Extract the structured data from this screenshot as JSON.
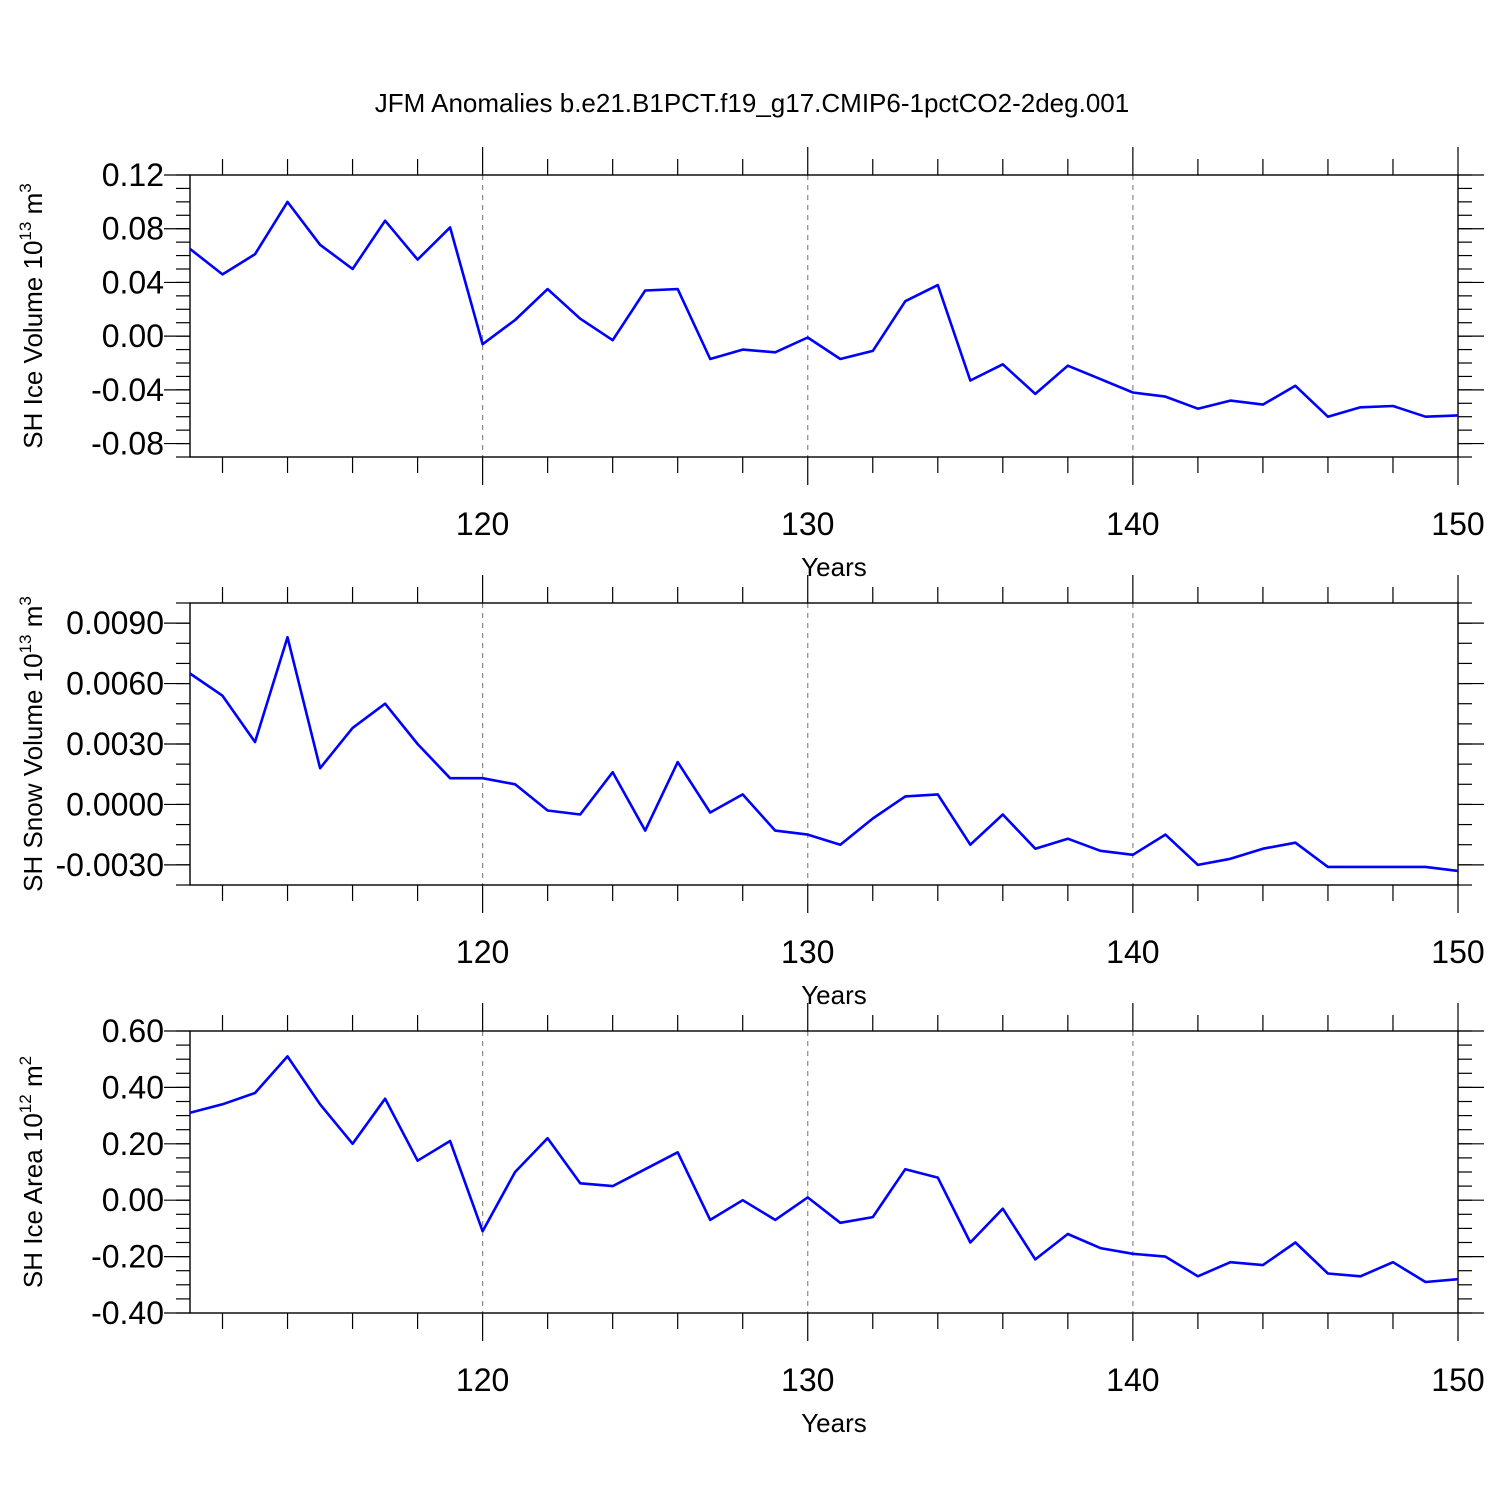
{
  "figure": {
    "title": "JFM Anomalies b.e21.B1PCT.f19_g17.CMIP6-1pctCO2-2deg.001"
  },
  "colors": {
    "line": "#0000ff",
    "grid": "#888888"
  },
  "chart_data": [
    {
      "type": "line",
      "xlabel": "Years",
      "ylabel_main": "SH Ice Volume 10",
      "ylabel_exp": "13",
      "ylabel_unit": " m",
      "ylabel_unit_exp": "3",
      "xlim": [
        111,
        150
      ],
      "ylim": [
        -0.09,
        0.12
      ],
      "x_ticks": [
        120,
        130,
        140,
        150
      ],
      "x_tick_labels": [
        "120",
        "130",
        "140",
        "150"
      ],
      "y_ticks": [
        -0.08,
        -0.04,
        0.0,
        0.04,
        0.08,
        0.12
      ],
      "y_tick_labels": [
        "-0.08",
        "-0.04",
        "0.00",
        "0.04",
        "0.08",
        "0.12"
      ],
      "y_minor_step": 0.01,
      "vertical_grid": [
        120,
        130,
        140
      ],
      "series": [
        {
          "x": [
            111,
            112,
            113,
            114,
            115,
            116,
            117,
            118,
            119,
            120,
            121,
            122,
            123,
            124,
            125,
            126,
            127,
            128,
            129,
            130,
            131,
            132,
            133,
            134,
            135,
            136,
            137,
            138,
            139,
            140,
            141,
            142,
            143,
            144,
            145,
            146,
            147,
            148,
            149,
            150
          ],
          "values": [
            0.065,
            0.046,
            0.061,
            0.1,
            0.068,
            0.05,
            0.086,
            0.057,
            0.081,
            -0.006,
            0.012,
            0.035,
            0.013,
            -0.003,
            0.034,
            0.035,
            -0.017,
            -0.01,
            -0.012,
            -0.001,
            -0.017,
            -0.011,
            0.026,
            0.038,
            -0.033,
            -0.021,
            -0.043,
            -0.022,
            -0.032,
            -0.042,
            -0.045,
            -0.054,
            -0.048,
            -0.051,
            -0.037,
            -0.06,
            -0.053,
            -0.052,
            -0.06,
            -0.059
          ]
        }
      ]
    },
    {
      "type": "line",
      "xlabel": "Years",
      "ylabel_main": "SH Snow Volume 10",
      "ylabel_exp": "13",
      "ylabel_unit": " m",
      "ylabel_unit_exp": "3",
      "xlim": [
        111,
        150
      ],
      "ylim": [
        -0.004,
        0.01
      ],
      "x_ticks": [
        120,
        130,
        140,
        150
      ],
      "x_tick_labels": [
        "120",
        "130",
        "140",
        "150"
      ],
      "y_ticks": [
        -0.003,
        0.0,
        0.003,
        0.006,
        0.009
      ],
      "y_tick_labels": [
        "-0.0030",
        "0.0000",
        "0.0030",
        "0.0060",
        "0.0090"
      ],
      "y_minor_step": 0.001,
      "vertical_grid": [
        120,
        130,
        140
      ],
      "series": [
        {
          "x": [
            111,
            112,
            113,
            114,
            115,
            116,
            117,
            118,
            119,
            120,
            121,
            122,
            123,
            124,
            125,
            126,
            127,
            128,
            129,
            130,
            131,
            132,
            133,
            134,
            135,
            136,
            137,
            138,
            139,
            140,
            141,
            142,
            143,
            144,
            145,
            146,
            147,
            148,
            149,
            150
          ],
          "values": [
            0.0065,
            0.0054,
            0.0031,
            0.0083,
            0.0018,
            0.0038,
            0.005,
            0.003,
            0.0013,
            0.0013,
            0.001,
            -0.0003,
            -0.0005,
            0.0016,
            -0.0013,
            0.0021,
            -0.0004,
            0.0005,
            -0.0013,
            -0.0015,
            -0.002,
            -0.0007,
            0.0004,
            0.0005,
            -0.002,
            -0.0005,
            -0.0022,
            -0.0017,
            -0.0023,
            -0.0025,
            -0.0015,
            -0.003,
            -0.0027,
            -0.0022,
            -0.0019,
            -0.0031,
            -0.0031,
            -0.0031,
            -0.0031,
            -0.0033
          ]
        }
      ]
    },
    {
      "type": "line",
      "xlabel": "Years",
      "ylabel_main": "SH Ice Area 10",
      "ylabel_exp": "12",
      "ylabel_unit": " m",
      "ylabel_unit_exp": "2",
      "xlim": [
        111,
        150
      ],
      "ylim": [
        -0.4,
        0.6
      ],
      "x_ticks": [
        120,
        130,
        140,
        150
      ],
      "x_tick_labels": [
        "120",
        "130",
        "140",
        "150"
      ],
      "y_ticks": [
        -0.4,
        -0.2,
        0.0,
        0.2,
        0.4,
        0.6
      ],
      "y_tick_labels": [
        "-0.40",
        "-0.20",
        "0.00",
        "0.20",
        "0.40",
        "0.60"
      ],
      "y_minor_step": 0.05,
      "vertical_grid": [
        120,
        130,
        140
      ],
      "series": [
        {
          "x": [
            111,
            112,
            113,
            114,
            115,
            116,
            117,
            118,
            119,
            120,
            121,
            122,
            123,
            124,
            125,
            126,
            127,
            128,
            129,
            130,
            131,
            132,
            133,
            134,
            135,
            136,
            137,
            138,
            139,
            140,
            141,
            142,
            143,
            144,
            145,
            146,
            147,
            148,
            149,
            150
          ],
          "values": [
            0.31,
            0.34,
            0.38,
            0.51,
            0.34,
            0.2,
            0.36,
            0.14,
            0.21,
            -0.11,
            0.1,
            0.22,
            0.06,
            0.05,
            0.11,
            0.17,
            -0.07,
            0.0,
            -0.07,
            0.01,
            -0.08,
            -0.06,
            0.11,
            0.08,
            -0.15,
            -0.03,
            -0.21,
            -0.12,
            -0.17,
            -0.19,
            -0.2,
            -0.27,
            -0.22,
            -0.23,
            -0.15,
            -0.26,
            -0.27,
            -0.22,
            -0.29,
            -0.28
          ]
        }
      ]
    }
  ]
}
